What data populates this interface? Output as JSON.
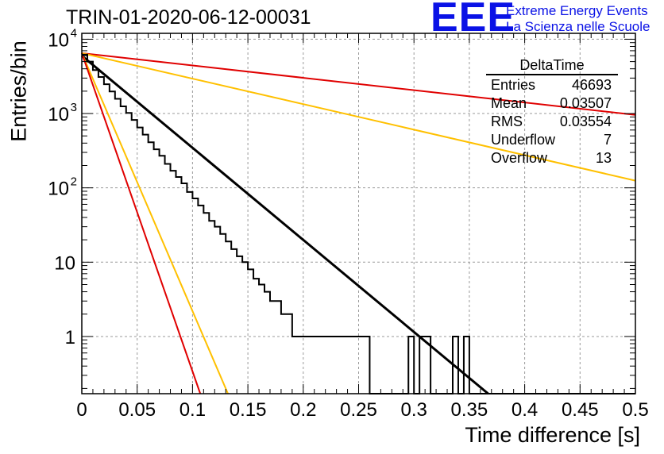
{
  "header": {
    "run_title": "TRIN-01-2020-06-12-00031",
    "logo_letters": "EEE",
    "logo_line1": "Extreme Energy Events",
    "logo_line2": "La Scienza nelle Scuole"
  },
  "stats_box": {
    "title": "DeltaTime",
    "rows": [
      {
        "label": "Entries",
        "value": "46693"
      },
      {
        "label": "Mean",
        "value": "0.03507"
      },
      {
        "label": "RMS",
        "value": "0.03554"
      },
      {
        "label": "Underflow",
        "value": "7"
      },
      {
        "label": "Overflow",
        "value": "13"
      }
    ]
  },
  "colors": {
    "histogram": "#000000",
    "fit": "#000000",
    "red_lines": "#e00000",
    "orange_lines": "#ffc000",
    "grid": "#9a9a9a"
  },
  "chart_data": {
    "type": "histogram",
    "title": "TRIN-01-2020-06-12-00031",
    "xlabel": "Time difference [s]",
    "ylabel": "Entries/bin",
    "xlim": [
      0,
      0.5
    ],
    "ylim": [
      0.17,
      12000
    ],
    "y_scale": "log",
    "grid": true,
    "x_ticks": [
      0,
      0.05,
      0.1,
      0.15,
      0.2,
      0.25,
      0.3,
      0.35,
      0.4,
      0.45,
      0.5
    ],
    "x_tick_labels": [
      "0",
      "0.05",
      "0.1",
      "0.15",
      "0.2",
      "0.25",
      "0.3",
      "0.35",
      "0.4",
      "0.45",
      "0.5"
    ],
    "y_tick_labels": [
      {
        "value": 10000,
        "base": "10",
        "exp": "4"
      },
      {
        "value": 1000,
        "base": "10",
        "exp": "3"
      },
      {
        "value": 100,
        "base": "10",
        "exp": "2"
      },
      {
        "value": 10,
        "base": "10",
        "exp": ""
      },
      {
        "value": 1,
        "base": "1",
        "exp": ""
      }
    ],
    "histogram": {
      "name": "DeltaTime",
      "bin_width": 0.005,
      "counts": [
        6200,
        5000,
        3850,
        3100,
        2480,
        1980,
        1580,
        1250,
        1020,
        820,
        650,
        520,
        410,
        330,
        270,
        210,
        170,
        140,
        115,
        88,
        72,
        58,
        46,
        36,
        30,
        24,
        19,
        15,
        12,
        10,
        8,
        6,
        5,
        4,
        3,
        3,
        2,
        2,
        1,
        1,
        1,
        1,
        1,
        1,
        1,
        1,
        1,
        1,
        1,
        1,
        1,
        1,
        0,
        0,
        0,
        0,
        0,
        0,
        0,
        1,
        0,
        1,
        1,
        0,
        0,
        0,
        0,
        1,
        0,
        1,
        0,
        0,
        0,
        0,
        0,
        0,
        0,
        0,
        0,
        0,
        0,
        0,
        0,
        0,
        0,
        0,
        0,
        0,
        0,
        0,
        0,
        0,
        0,
        0,
        0,
        0,
        0,
        0,
        0,
        0
      ]
    },
    "lines": [
      {
        "color": "red",
        "role": "shallow",
        "points": [
          [
            0,
            6500
          ],
          [
            0.5,
            960
          ]
        ]
      },
      {
        "color": "orange",
        "role": "shallow",
        "points": [
          [
            0,
            6500
          ],
          [
            0.5,
            125
          ]
        ]
      },
      {
        "color": "black",
        "role": "fit",
        "points": [
          [
            0,
            6000
          ],
          [
            0.367,
            0.17
          ]
        ]
      },
      {
        "color": "orange",
        "role": "steep",
        "points": [
          [
            0,
            6500
          ],
          [
            0.132,
            0.17
          ]
        ]
      },
      {
        "color": "red",
        "role": "steep",
        "points": [
          [
            0,
            6500
          ],
          [
            0.107,
            0.17
          ]
        ]
      }
    ]
  }
}
